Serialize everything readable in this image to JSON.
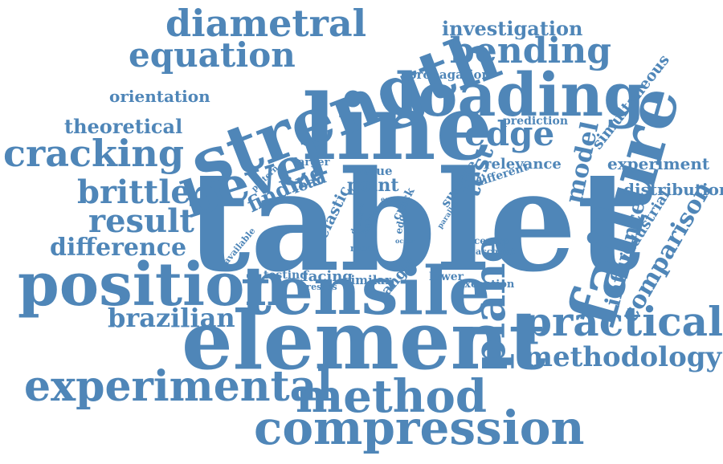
{
  "colors": {
    "primary": "#4f86b8",
    "background": "#ffffff"
  },
  "words": [
    {
      "text": "tablet",
      "weight": 1.0
    },
    {
      "text": "line",
      "weight": 0.8
    },
    {
      "text": "element",
      "weight": 0.75
    },
    {
      "text": "strength",
      "weight": 0.72
    },
    {
      "text": "failure",
      "weight": 0.7
    },
    {
      "text": "tensile",
      "weight": 0.68
    },
    {
      "text": "position",
      "weight": 0.65
    },
    {
      "text": "loading",
      "weight": 0.64
    },
    {
      "text": "bevel",
      "weight": 0.6
    },
    {
      "text": "compression",
      "weight": 0.6
    },
    {
      "text": "method",
      "weight": 0.55
    },
    {
      "text": "plane",
      "weight": 0.55
    },
    {
      "text": "experimental",
      "weight": 0.52
    },
    {
      "text": "practical",
      "weight": 0.52
    },
    {
      "text": "cracking",
      "weight": 0.5
    },
    {
      "text": "diametral",
      "weight": 0.5
    },
    {
      "text": "bending",
      "weight": 0.45
    },
    {
      "text": "equation",
      "weight": 0.44
    },
    {
      "text": "brittle",
      "weight": 0.42
    },
    {
      "text": "result",
      "weight": 0.42
    },
    {
      "text": "edge",
      "weight": 0.42
    },
    {
      "text": "methodology",
      "weight": 0.4
    },
    {
      "text": "brazilian",
      "weight": 0.36
    },
    {
      "text": "difference",
      "weight": 0.34
    },
    {
      "text": "comparison",
      "weight": 0.34
    },
    {
      "text": "model",
      "weight": 0.32
    },
    {
      "text": "test",
      "weight": 0.32
    },
    {
      "text": "influence",
      "weight": 0.3
    },
    {
      "text": "investigation",
      "weight": 0.3
    },
    {
      "text": "theoretical",
      "weight": 0.28
    },
    {
      "text": "finding",
      "weight": 0.27
    },
    {
      "text": "experiment",
      "weight": 0.26
    },
    {
      "text": "distribution",
      "weight": 0.26
    },
    {
      "text": "point",
      "weight": 0.25
    },
    {
      "text": "orientation",
      "weight": 0.24
    },
    {
      "text": "simultaneous",
      "weight": 0.22
    },
    {
      "text": "industrial",
      "weight": 0.22
    },
    {
      "text": "relevance",
      "weight": 0.22
    },
    {
      "text": "elastic",
      "weight": 0.21
    },
    {
      "text": "facing",
      "weight": 0.21
    },
    {
      "text": "angle",
      "weight": 0.2
    },
    {
      "text": "load",
      "weight": 0.2
    },
    {
      "text": "surface",
      "weight": 0.19
    },
    {
      "text": "propagation",
      "weight": 0.19
    },
    {
      "text": "value",
      "weight": 0.19
    },
    {
      "text": "similar",
      "weight": 0.18
    },
    {
      "text": "different",
      "weight": 0.18
    },
    {
      "text": "prediction",
      "weight": 0.17
    },
    {
      "text": "testing",
      "weight": 0.17
    },
    {
      "text": "lower",
      "weight": 0.17
    },
    {
      "text": "exception",
      "weight": 0.16
    },
    {
      "text": "crack",
      "weight": 0.16
    },
    {
      "text": "edged",
      "weight": 0.15
    },
    {
      "text": "larger",
      "weight": 0.15
    },
    {
      "text": "centre",
      "weight": 0.14
    },
    {
      "text": "account",
      "weight": 0.13
    },
    {
      "text": "stresses",
      "weight": 0.13
    },
    {
      "text": "more",
      "weight": 0.13
    },
    {
      "text": "available",
      "weight": 0.13
    },
    {
      "text": "pattern",
      "weight": 0.12
    },
    {
      "text": "halve",
      "weight": 0.12
    },
    {
      "text": "flat",
      "weight": 0.12
    },
    {
      "text": "parallel",
      "weight": 0.11
    },
    {
      "text": "depth",
      "weight": 0.1
    },
    {
      "text": "occur",
      "weight": 0.1
    },
    {
      "text": "equal",
      "weight": 0.1
    },
    {
      "text": "work",
      "weight": 0.09
    }
  ]
}
